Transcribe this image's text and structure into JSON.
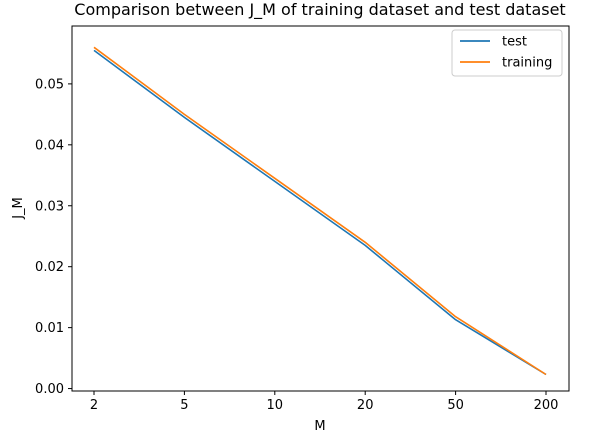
{
  "chart_data": {
    "type": "line",
    "title": "Comparison between J_M of training dataset and test dataset",
    "xlabel": "M",
    "ylabel": "J_M",
    "categories": [
      "2",
      "5",
      "10",
      "20",
      "50",
      "200"
    ],
    "series": [
      {
        "name": "test",
        "values": [
          0.0555,
          0.0445,
          0.034,
          0.0235,
          0.0113,
          0.0023
        ],
        "color": "#1f77b4"
      },
      {
        "name": "training",
        "values": [
          0.056,
          0.045,
          0.0345,
          0.024,
          0.0118,
          0.0023
        ],
        "color": "#ff7f0e"
      }
    ],
    "ylim": [
      -0.0004,
      0.0595
    ],
    "yticks": [
      0.0,
      0.01,
      0.02,
      0.03,
      0.04,
      0.05
    ],
    "ytick_labels": [
      "0.00",
      "0.01",
      "0.02",
      "0.03",
      "0.04",
      "0.05"
    ],
    "grid": false,
    "legend_position": "top-right"
  }
}
